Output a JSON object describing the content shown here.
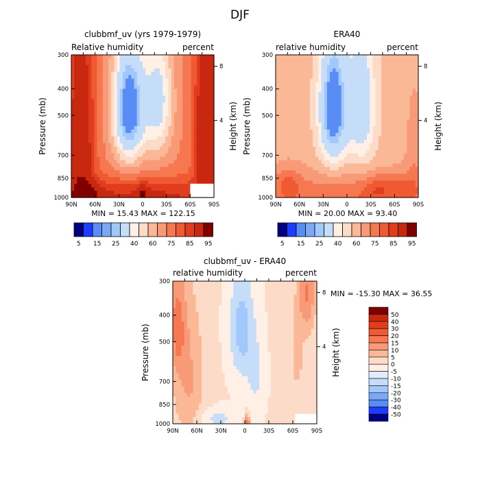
{
  "page_title": "DJF",
  "colors": {
    "neg": [
      "#000080",
      "#0000c8",
      "#1e3cff",
      "#3c6ef0",
      "#5a8cf5",
      "#7ba9f5",
      "#a0c8fa",
      "#c6ddfa",
      "#e1ebfa"
    ],
    "near": "#fff0e6",
    "pos": [
      "#fcdcc8",
      "#fab896",
      "#f89a78",
      "#f57850",
      "#f05a32",
      "#e13c1e",
      "#c8280f",
      "#a0140a",
      "#800000"
    ]
  },
  "chart_data": [
    {
      "type": "heatmap",
      "title": "clubbmf_uv (yrs 1979-1979)",
      "left_label": "Relative humidity",
      "right_label": "percent",
      "ylabel": "Pressure (mb)",
      "ylabel2": "Height (km)",
      "xticks": [
        "90N",
        "60N",
        "30N",
        "0",
        "30S",
        "60S",
        "90S"
      ],
      "yticks": [
        "300",
        "400",
        "500",
        "700",
        "850",
        "1000"
      ],
      "height_ticks": [
        "8",
        "4"
      ],
      "stats": "MIN =  15.43   MAX = 122.15",
      "colorbar_labels": [
        "5",
        "15",
        "25",
        "40",
        "60",
        "75",
        "85",
        "95"
      ],
      "field": {
        "xmin": -90,
        "xmax": 90,
        "pressure": [
          300,
          1000
        ],
        "min": 15.43,
        "max": 122.15
      }
    },
    {
      "type": "heatmap",
      "title": "ERA40",
      "left_label": "relative humidity",
      "right_label": "percent",
      "ylabel": "Pressure (mb)",
      "ylabel2": "Height (km)",
      "xticks": [
        "90N",
        "60N",
        "30N",
        "0",
        "30S",
        "60S",
        "90S"
      ],
      "yticks": [
        "300",
        "400",
        "500",
        "700",
        "850",
        "1000"
      ],
      "height_ticks": [
        "8",
        "4"
      ],
      "stats": "MIN =  20.00   MAX =  93.40",
      "colorbar_labels": [
        "5",
        "15",
        "25",
        "40",
        "60",
        "75",
        "85",
        "95"
      ],
      "field": {
        "xmin": -90,
        "xmax": 90,
        "pressure": [
          300,
          1000
        ],
        "min": 20.0,
        "max": 93.4
      }
    },
    {
      "type": "heatmap",
      "title": "clubbmf_uv - ERA40",
      "left_label": "relative humidity",
      "right_label": "percent",
      "ylabel": "Pressure (mb)",
      "ylabel2": "Height (km)",
      "xticks": [
        "90N",
        "60N",
        "30N",
        "0",
        "30S",
        "60S",
        "90S"
      ],
      "yticks": [
        "300",
        "400",
        "500",
        "700",
        "850",
        "1000"
      ],
      "height_ticks": [
        "8",
        "4"
      ],
      "stats": "MIN = -15.30   MAX =  36.55",
      "colorbar_labels": [
        "50",
        "40",
        "30",
        "20",
        "15",
        "10",
        "5",
        "0",
        "-5",
        "-10",
        "-15",
        "-20",
        "-30",
        "-40",
        "-50"
      ],
      "field": {
        "xmin": -90,
        "xmax": 90,
        "pressure": [
          300,
          1000
        ],
        "min": -15.3,
        "max": 36.55
      }
    }
  ]
}
